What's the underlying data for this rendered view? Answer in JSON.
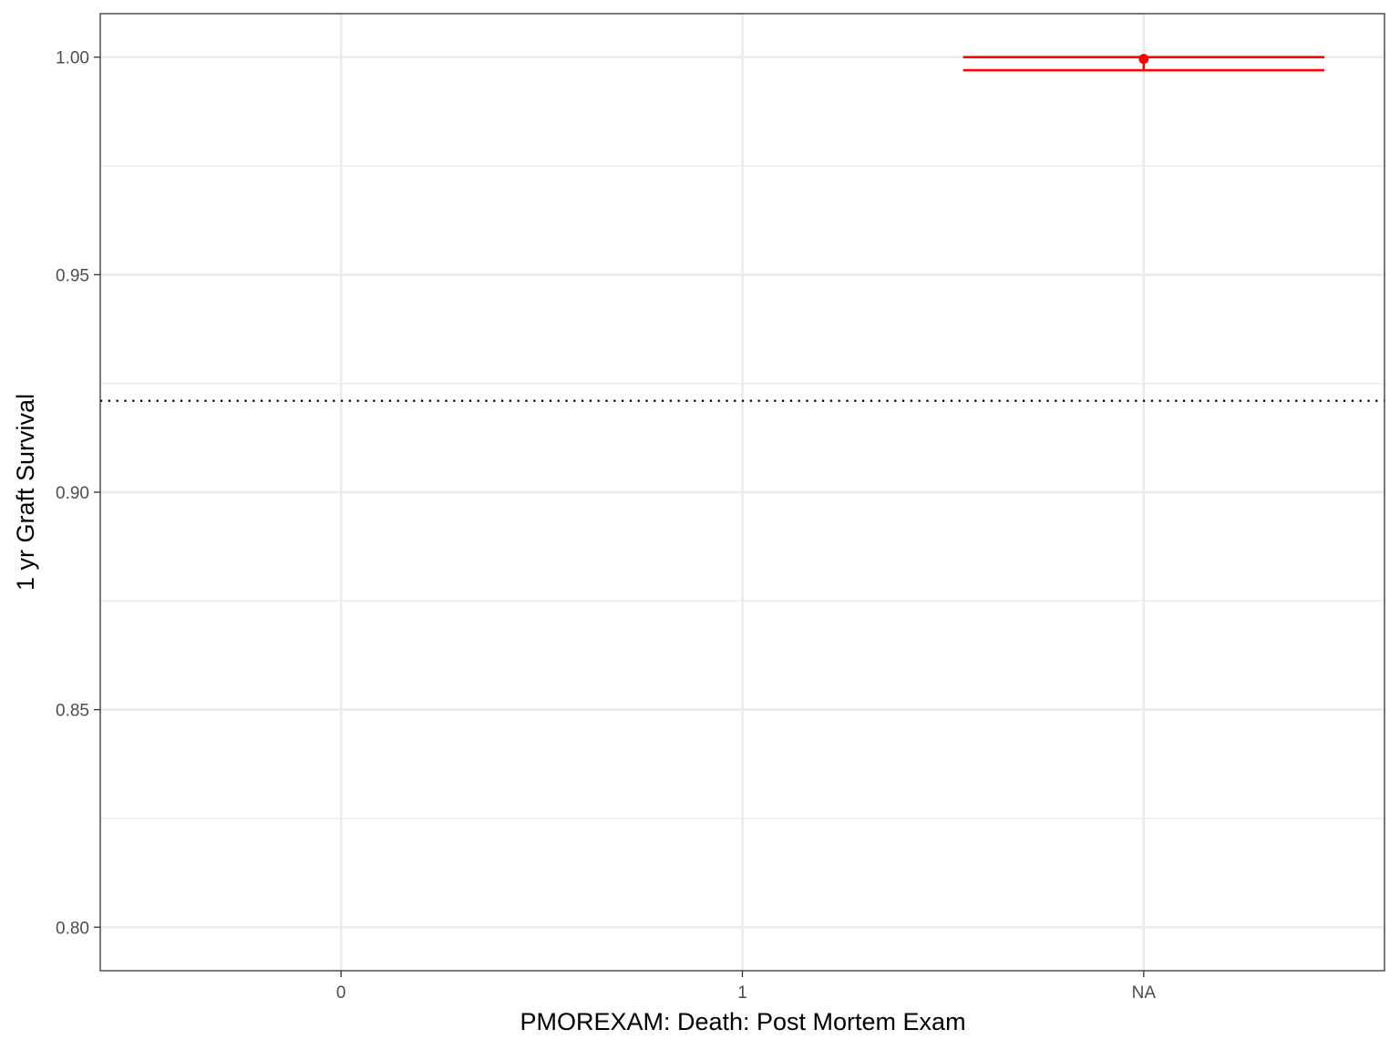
{
  "chart_data": {
    "type": "errorbar",
    "categories": [
      "0",
      "1",
      "NA"
    ],
    "xlabel": "PMOREXAM: Death: Post Mortem Exam",
    "ylabel": "1 yr Graft Survival",
    "ylim": [
      0.79,
      1.01
    ],
    "y_ticks": [
      0.8,
      0.85,
      0.9,
      0.95,
      1.0
    ],
    "y_tick_labels": [
      "0.80",
      "0.85",
      "0.90",
      "0.95",
      "1.00"
    ],
    "grid": true,
    "reference_line": {
      "y": 0.921,
      "style": "dotted",
      "color": "#000000"
    },
    "points": [
      {
        "category": "NA",
        "y": 0.9996,
        "ymin": 0.997,
        "ymax": 1.0,
        "color": "#ff0000"
      }
    ]
  }
}
